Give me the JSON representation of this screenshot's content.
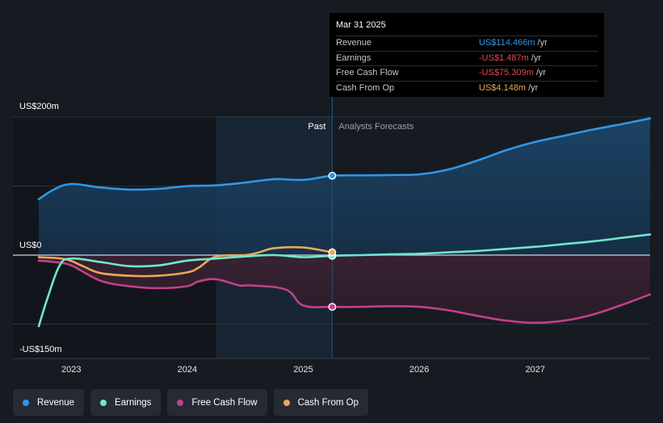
{
  "colors": {
    "revenue": "#2f97e6",
    "earnings": "#6fe6d0",
    "free_cash_flow": "#c2408a",
    "cash_from_op": "#e8a857",
    "negative": "#e8484b",
    "background": "#161b22"
  },
  "tooltip": {
    "date": "Mar 31 2025",
    "rows": [
      {
        "label": "Revenue",
        "value": "US$114.466m",
        "unit": "/yr",
        "color": "#2f97e6"
      },
      {
        "label": "Earnings",
        "value": "-US$1.487m",
        "unit": "/yr",
        "color": "#e8484b"
      },
      {
        "label": "Free Cash Flow",
        "value": "-US$75.309m",
        "unit": "/yr",
        "color": "#e8484b"
      },
      {
        "label": "Cash From Op",
        "value": "US$4.148m",
        "unit": "/yr",
        "color": "#e8a857"
      }
    ]
  },
  "legend": [
    {
      "label": "Revenue",
      "color": "#2f97e6"
    },
    {
      "label": "Earnings",
      "color": "#6fe6d0"
    },
    {
      "label": "Free Cash Flow",
      "color": "#c2408a"
    },
    {
      "label": "Cash From Op",
      "color": "#e8a857"
    }
  ],
  "chart_data": {
    "type": "line",
    "title": "",
    "xlabel": "",
    "ylabel": "",
    "ylim": [
      -150,
      200
    ],
    "xlim": [
      2022.72,
      2027.99
    ],
    "y_tick_labels": [
      {
        "value": 200,
        "label": "US$200m"
      },
      {
        "value": 0,
        "label": "US$0"
      },
      {
        "value": -150,
        "label": "-US$150m"
      }
    ],
    "x_ticks": [
      {
        "value": 2023.0,
        "label": "2023"
      },
      {
        "value": 2024.0,
        "label": "2024"
      },
      {
        "value": 2025.0,
        "label": "2025"
      },
      {
        "value": 2026.0,
        "label": "2026"
      },
      {
        "value": 2027.0,
        "label": "2027"
      }
    ],
    "divider": {
      "x": 2025.25,
      "past_label": "Past",
      "forecast_label": "Analysts Forecasts"
    },
    "highlight_range": [
      2024.25,
      2025.25
    ],
    "series": [
      {
        "name": "Revenue",
        "key": "revenue",
        "x": [
          2022.72,
          2022.85,
          2023.0,
          2023.25,
          2023.5,
          2023.75,
          2024.0,
          2024.25,
          2024.5,
          2024.75,
          2025.0,
          2025.25,
          2025.5,
          2025.75,
          2026.0,
          2026.25,
          2026.5,
          2026.75,
          2027.0,
          2027.25,
          2027.5,
          2027.75,
          2027.99
        ],
        "values": [
          81,
          95,
          103,
          98,
          95,
          96,
          100,
          101,
          105,
          110,
          109,
          115,
          115.5,
          116,
          117,
          124,
          137,
          152,
          164,
          173,
          182,
          190,
          198
        ]
      },
      {
        "name": "Earnings",
        "key": "earnings",
        "x": [
          2022.72,
          2022.8,
          2022.9,
          2023.0,
          2023.25,
          2023.5,
          2023.75,
          2024.0,
          2024.25,
          2024.5,
          2024.75,
          2025.0,
          2025.25,
          2025.5,
          2025.75,
          2026.0,
          2026.25,
          2026.5,
          2026.75,
          2027.0,
          2027.25,
          2027.5,
          2027.75,
          2027.99
        ],
        "values": [
          -103,
          -60,
          -15,
          -5,
          -10,
          -16,
          -15,
          -8,
          -5,
          -2,
          0,
          -3,
          -1,
          0,
          1,
          2,
          4,
          6,
          9,
          12,
          16,
          20,
          25,
          30
        ]
      },
      {
        "name": "Free Cash Flow",
        "key": "free_cash_flow",
        "x": [
          2022.72,
          2022.85,
          2023.0,
          2023.25,
          2023.5,
          2023.75,
          2024.0,
          2024.1,
          2024.25,
          2024.45,
          2024.55,
          2024.85,
          2025.0,
          2025.25,
          2025.5,
          2025.75,
          2026.0,
          2026.25,
          2026.5,
          2026.75,
          2027.0,
          2027.25,
          2027.5,
          2027.75,
          2027.99
        ],
        "values": [
          -8,
          -10,
          -15,
          -37,
          -45,
          -48,
          -45,
          -38,
          -35,
          -44,
          -44,
          -50,
          -73,
          -75,
          -75,
          -74,
          -75,
          -80,
          -88,
          -95,
          -98,
          -95,
          -86,
          -72,
          -57
        ]
      },
      {
        "name": "Cash From Op",
        "key": "cash_from_op",
        "x": [
          2022.72,
          2022.95,
          2023.1,
          2023.25,
          2023.5,
          2023.75,
          2024.0,
          2024.1,
          2024.25,
          2024.5,
          2024.62,
          2024.75,
          2025.0,
          2025.25
        ],
        "values": [
          -3,
          -6,
          -16,
          -26,
          -30,
          -30,
          -25,
          -18,
          -2,
          0,
          4,
          10,
          11,
          4
        ]
      }
    ],
    "markers": [
      {
        "series": "revenue",
        "x": 2025.25,
        "value": 115
      },
      {
        "series": "earnings",
        "x": 2025.25,
        "value": -1
      },
      {
        "series": "free_cash_flow",
        "x": 2025.25,
        "value": -75
      },
      {
        "series": "cash_from_op",
        "x": 2025.25,
        "value": 4
      }
    ]
  }
}
